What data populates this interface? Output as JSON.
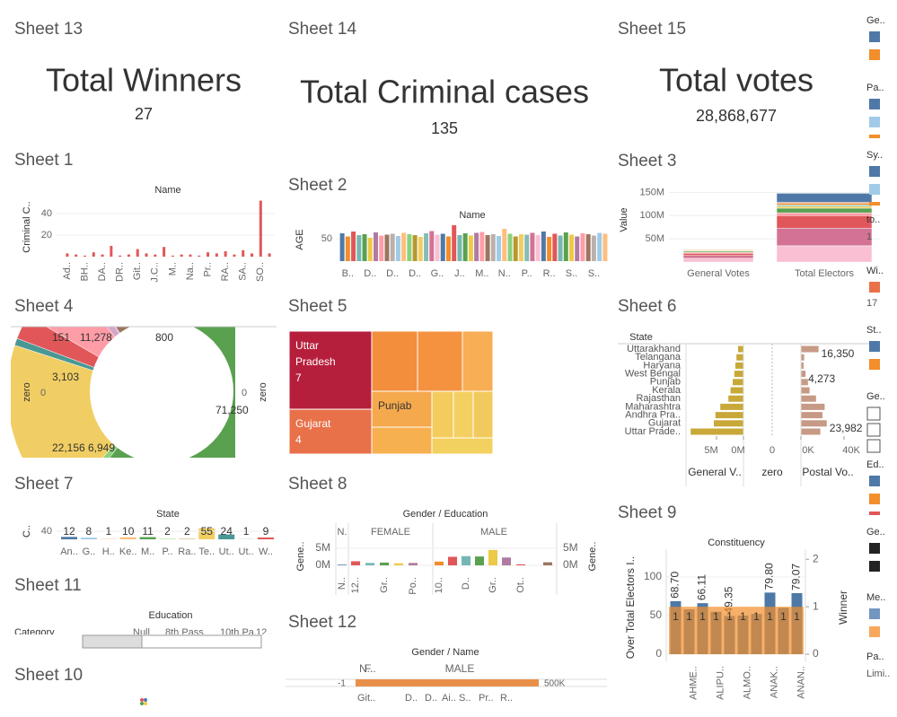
{
  "kpis": [
    {
      "sheet": "Sheet 13",
      "title": "Total Winners",
      "value": "27"
    },
    {
      "sheet": "Sheet 14",
      "title": "Total Criminal cases",
      "value": "135"
    },
    {
      "sheet": "Sheet 15",
      "title": "Total votes",
      "value": "28,868,677"
    }
  ],
  "sheet1": {
    "sheet": "Sheet 1",
    "header": "Name",
    "y_label": "Criminal C..",
    "ylim": [
      0,
      55
    ],
    "yticks": [
      20,
      40
    ],
    "color": "#e15759",
    "categories": [
      "Ad..",
      null,
      "BH..",
      null,
      "DA..",
      null,
      "DR..",
      null,
      "Git..",
      null,
      "J.C..",
      null,
      "M..",
      null,
      "Na..",
      null,
      "Pr..",
      null,
      "RA..",
      null,
      "SA..",
      null,
      "SO..",
      null
    ],
    "values": [
      3,
      2,
      1,
      4,
      2,
      10,
      1,
      2,
      7,
      3,
      2,
      9,
      1,
      2,
      2,
      1,
      4,
      3,
      5,
      2,
      6,
      3,
      52,
      3
    ]
  },
  "sheet2": {
    "sheet": "Sheet 2",
    "header": "Name",
    "y_label": "AGE",
    "ylim": [
      0,
      80
    ],
    "yticks": [
      50
    ],
    "categories": [
      null,
      "B..",
      null,
      null,
      null,
      "D..",
      null,
      null,
      null,
      "D..",
      null,
      null,
      null,
      "D..",
      null,
      null,
      null,
      "G..",
      null,
      null,
      null,
      "J..",
      null,
      null,
      null,
      "M..",
      null,
      null,
      null,
      "N..",
      null,
      null,
      null,
      "P..",
      null,
      null,
      null,
      "R..",
      null,
      null,
      null,
      "S..",
      null,
      null,
      null,
      "S..",
      null,
      null
    ],
    "values": [
      62,
      55,
      66,
      58,
      60,
      52,
      64,
      57,
      59,
      61,
      56,
      63,
      60,
      58,
      54,
      62,
      67,
      59,
      61,
      55,
      80,
      58,
      62,
      57,
      63,
      65,
      58,
      60,
      56,
      72,
      61,
      55,
      60,
      59,
      63,
      58,
      66,
      54,
      61,
      57,
      64,
      59,
      55,
      62,
      60,
      57,
      63,
      61
    ],
    "palette": [
      "#4e79a7",
      "#f28e2b",
      "#e15759",
      "#76b7b2",
      "#59a14f",
      "#edc948",
      "#b07aa1",
      "#ff9da7",
      "#9c755f",
      "#bab0ac",
      "#a0cbe8",
      "#ffbe7d",
      "#8cd17d",
      "#b6992d",
      "#f1ce63",
      "#86bcb6",
      "#d37295",
      "#fabfd2"
    ]
  },
  "sheet3": {
    "sheet": "Sheet 3",
    "y_label": "Value",
    "categories": [
      "General Votes",
      "Total Electors"
    ],
    "ylim": [
      0,
      170000000
    ],
    "yticks": [
      {
        "value": 50000000,
        "label": "50M"
      },
      {
        "value": 100000000,
        "label": "100M"
      },
      {
        "value": 150000000,
        "label": "150M"
      }
    ],
    "segments": [
      {
        "color": "#fabfd2",
        "values": [
          8000000,
          35000000
        ]
      },
      {
        "color": "#d37295",
        "values": [
          6000000,
          38000000
        ]
      },
      {
        "color": "#e15759",
        "values": [
          5000000,
          27000000
        ]
      },
      {
        "color": "#ff9da7",
        "values": [
          2000000,
          6000000
        ]
      },
      {
        "color": "#59a14f",
        "values": [
          2500000,
          10000000
        ]
      },
      {
        "color": "#edc948",
        "values": [
          1500000,
          4000000
        ]
      },
      {
        "color": "#76b7b2",
        "values": [
          1000000,
          3000000
        ]
      },
      {
        "color": "#f28e2b",
        "values": [
          1500000,
          4000000
        ]
      },
      {
        "color": "#b07aa1",
        "values": [
          800000,
          2000000
        ]
      },
      {
        "color": "#4e79a7",
        "values": [
          1000000,
          19000000
        ]
      }
    ]
  },
  "sheet4": {
    "sheet": "Sheet 4",
    "axis_label": "zero",
    "axis_value": "0",
    "values": [
      800,
      71250,
      1200,
      22156,
      900,
      3103,
      6949,
      1500,
      151,
      11278
    ],
    "value_labels": [
      "800",
      "71,250",
      null,
      "22,156",
      null,
      "3,103",
      "6,949",
      null,
      "151",
      "11,278"
    ],
    "colors": [
      "#a0cbe8",
      "#59a14f",
      "#8cd17d",
      "#f1ce63",
      "#499894",
      "#e15759",
      "#ff9da7",
      "#d4a6c8",
      "#b07aa1",
      "#9c755f"
    ]
  },
  "sheet5": {
    "sheet": "Sheet 5",
    "names": [
      "Uttar Pradesh",
      "Gujarat",
      "Punjab",
      null,
      null,
      null,
      null,
      null,
      null,
      null,
      null
    ],
    "values": [
      7,
      4,
      2,
      3,
      3,
      2,
      2,
      1,
      1,
      1,
      1
    ],
    "value_labels": [
      "7",
      "4",
      null,
      null,
      null,
      null,
      null,
      null,
      null,
      null,
      null
    ],
    "colors": [
      "#b61f3c",
      "#e8714a",
      "#f5a94d",
      "#f28e3c",
      "#f5923f",
      "#f7ae54",
      "#f7b04f",
      "#f4cc5e",
      "#f4d062",
      "#f2c95c",
      "#f3d160"
    ]
  },
  "sheet6": {
    "sheet": "Sheet 6",
    "row_header": "State",
    "columns": [
      "General V..",
      "zero",
      "Postal Vo.."
    ],
    "states": [
      "Uttarakhand",
      "Telangana",
      "Haryana",
      "West Bengal",
      "Punjab",
      "Kerala",
      "Rajasthan",
      "Maharashtra",
      "Andhra Pra..",
      "Gujarat",
      "Uttar Prade.."
    ],
    "general_votes": [
      1000000,
      1300000,
      1500000,
      1700000,
      2000000,
      2400000,
      2800000,
      4300000,
      5200000,
      5500000,
      9800000
    ],
    "general_lim": [
      0,
      10000000
    ],
    "general_ticks": [
      {
        "value": 5000000,
        "label": "5M"
      },
      {
        "value": 0,
        "label": "0M"
      }
    ],
    "zero_ticks": [
      0
    ],
    "postal_votes": [
      16350,
      3000,
      2500,
      4273,
      6500,
      8000,
      14000,
      22000,
      20000,
      23982,
      18000
    ],
    "postal_labels": [
      "16,350",
      null,
      null,
      "4,273",
      null,
      null,
      null,
      null,
      null,
      "23,982",
      null
    ],
    "postal_lim": [
      0,
      50000
    ],
    "postal_ticks": [
      {
        "value": 0,
        "label": "0K"
      },
      {
        "value": 40000,
        "label": "40K"
      }
    ],
    "color_general": "#c9a83a",
    "color_postal": "#c79a86"
  },
  "sheet7": {
    "sheet": "Sheet 7",
    "header": "State",
    "y_label": "C..",
    "ylim": [
      0,
      60
    ],
    "yticks": [
      40
    ],
    "categories": [
      "An..",
      "G..",
      "H..",
      "Ke..",
      "M..",
      "P..",
      "Ra..",
      "Te..",
      "Ut..",
      "Ut..",
      "W.."
    ],
    "values": [
      12,
      8,
      1,
      10,
      11,
      2,
      2,
      55,
      24,
      1,
      9
    ],
    "colors": [
      "#4e79a7",
      "#a0cbe8",
      "#f28e2b",
      "#ffbe7d",
      "#59a14f",
      "#8cd17d",
      "#b6992d",
      "#f1ce63",
      "#499894",
      "#86bcb6",
      "#e15759"
    ]
  },
  "sheet8": {
    "sheet": "Sheet 8",
    "header": "Gender / Education",
    "groups": [
      "N.",
      "FEMALE",
      "MALE"
    ],
    "y_label": "Gene..",
    "ylim": [
      -2000000,
      7000000
    ],
    "yticks": [
      {
        "value": 5000000,
        "label": "5M"
      },
      {
        "value": 0,
        "label": "0M"
      }
    ],
    "categories": [
      "N..",
      "12..",
      null,
      "Gr..",
      null,
      "Po..",
      "10..",
      null,
      "D..",
      null,
      "Gr..",
      null,
      "Ot..",
      null
    ],
    "values": [
      200000,
      1200000,
      700000,
      800000,
      600000,
      700000,
      1100000,
      2500000,
      2700000,
      2600000,
      4500000,
      2300000,
      300000,
      900000
    ],
    "colors": [
      "#4e79a7",
      "#e15759",
      "#76b7b2",
      "#59a14f",
      "#edc948",
      "#b07aa1",
      "#f28e2b",
      "#e15759",
      "#76b7b2",
      "#59a14f",
      "#edc948",
      "#b07aa1",
      "#e15759",
      "#9c755f"
    ]
  },
  "sheet9": {
    "sheet": "Sheet 9",
    "header": "Constituency",
    "y_label": "Over Total Electors I..",
    "y2_label": "Winner",
    "ylim": [
      0,
      126
    ],
    "yticks": [
      0,
      50,
      100
    ],
    "y2lim": [
      0,
      2.05
    ],
    "y2ticks": [
      0,
      1,
      2
    ],
    "categories": [
      "AHME..",
      null,
      "ALIPU..",
      null,
      "ALMO..",
      null,
      "ANAK..",
      null,
      "ANAN..",
      null
    ],
    "values": [
      68.7,
      58,
      66.11,
      55,
      49.35,
      50,
      52,
      79.8,
      60,
      79.07
    ],
    "value_labels": [
      "68.70",
      null,
      "66.11",
      null,
      "49.35",
      null,
      null,
      "79.80",
      null,
      "79.07"
    ],
    "winner": [
      1,
      1,
      1,
      1,
      1,
      1,
      1,
      1,
      1,
      1
    ],
    "color": "#4e79a7",
    "color2": "#f28e2b"
  },
  "sheet11": {
    "sheet": "Sheet 11",
    "header": "Education",
    "row_header": "Category",
    "columns": [
      "Null",
      "8th Pass",
      "10th Pa..",
      "12.."
    ]
  },
  "sheet12": {
    "sheet": "Sheet 12",
    "header": "Gender / Name",
    "groups": [
      "N..",
      "F..",
      "MALE"
    ],
    "axis_labels": [
      "-1",
      "500K"
    ],
    "names": [
      "Git..",
      "D..",
      "D..",
      "Ai..",
      "S..",
      "Pr..",
      "R.."
    ]
  },
  "sheet10": {
    "sheet": "Sheet 10"
  },
  "legends": [
    {
      "title": "Ge..",
      "colors": [
        "#4e79a7",
        "#f28e2b"
      ]
    },
    {
      "title": "Pa..",
      "colors": [
        "#4e79a7",
        "#a0cbe8",
        "#f28e2b"
      ]
    },
    {
      "title": "Sy..",
      "colors": [
        "#4e79a7",
        "#a0cbe8",
        "#f28e2b"
      ]
    },
    {
      "title": "to..",
      "text": "1"
    },
    {
      "title": "Wi..",
      "colors": [
        "#e8714a"
      ],
      "text": "17"
    },
    {
      "title": "St..",
      "colors": [
        "#4e79a7",
        "#f28e2b"
      ]
    },
    {
      "title": "Ge..",
      "checks": 3
    },
    {
      "title": "Ed..",
      "colors": [
        "#4e79a7",
        "#f28e2b",
        "#e15759"
      ]
    },
    {
      "title": "Ge..",
      "colors": [
        "#222222",
        "#222222"
      ]
    },
    {
      "title": "Me..",
      "colors": [
        "#7396c0",
        "#f7a85c"
      ]
    },
    {
      "title": "Pa..",
      "text": "Limi.."
    }
  ]
}
